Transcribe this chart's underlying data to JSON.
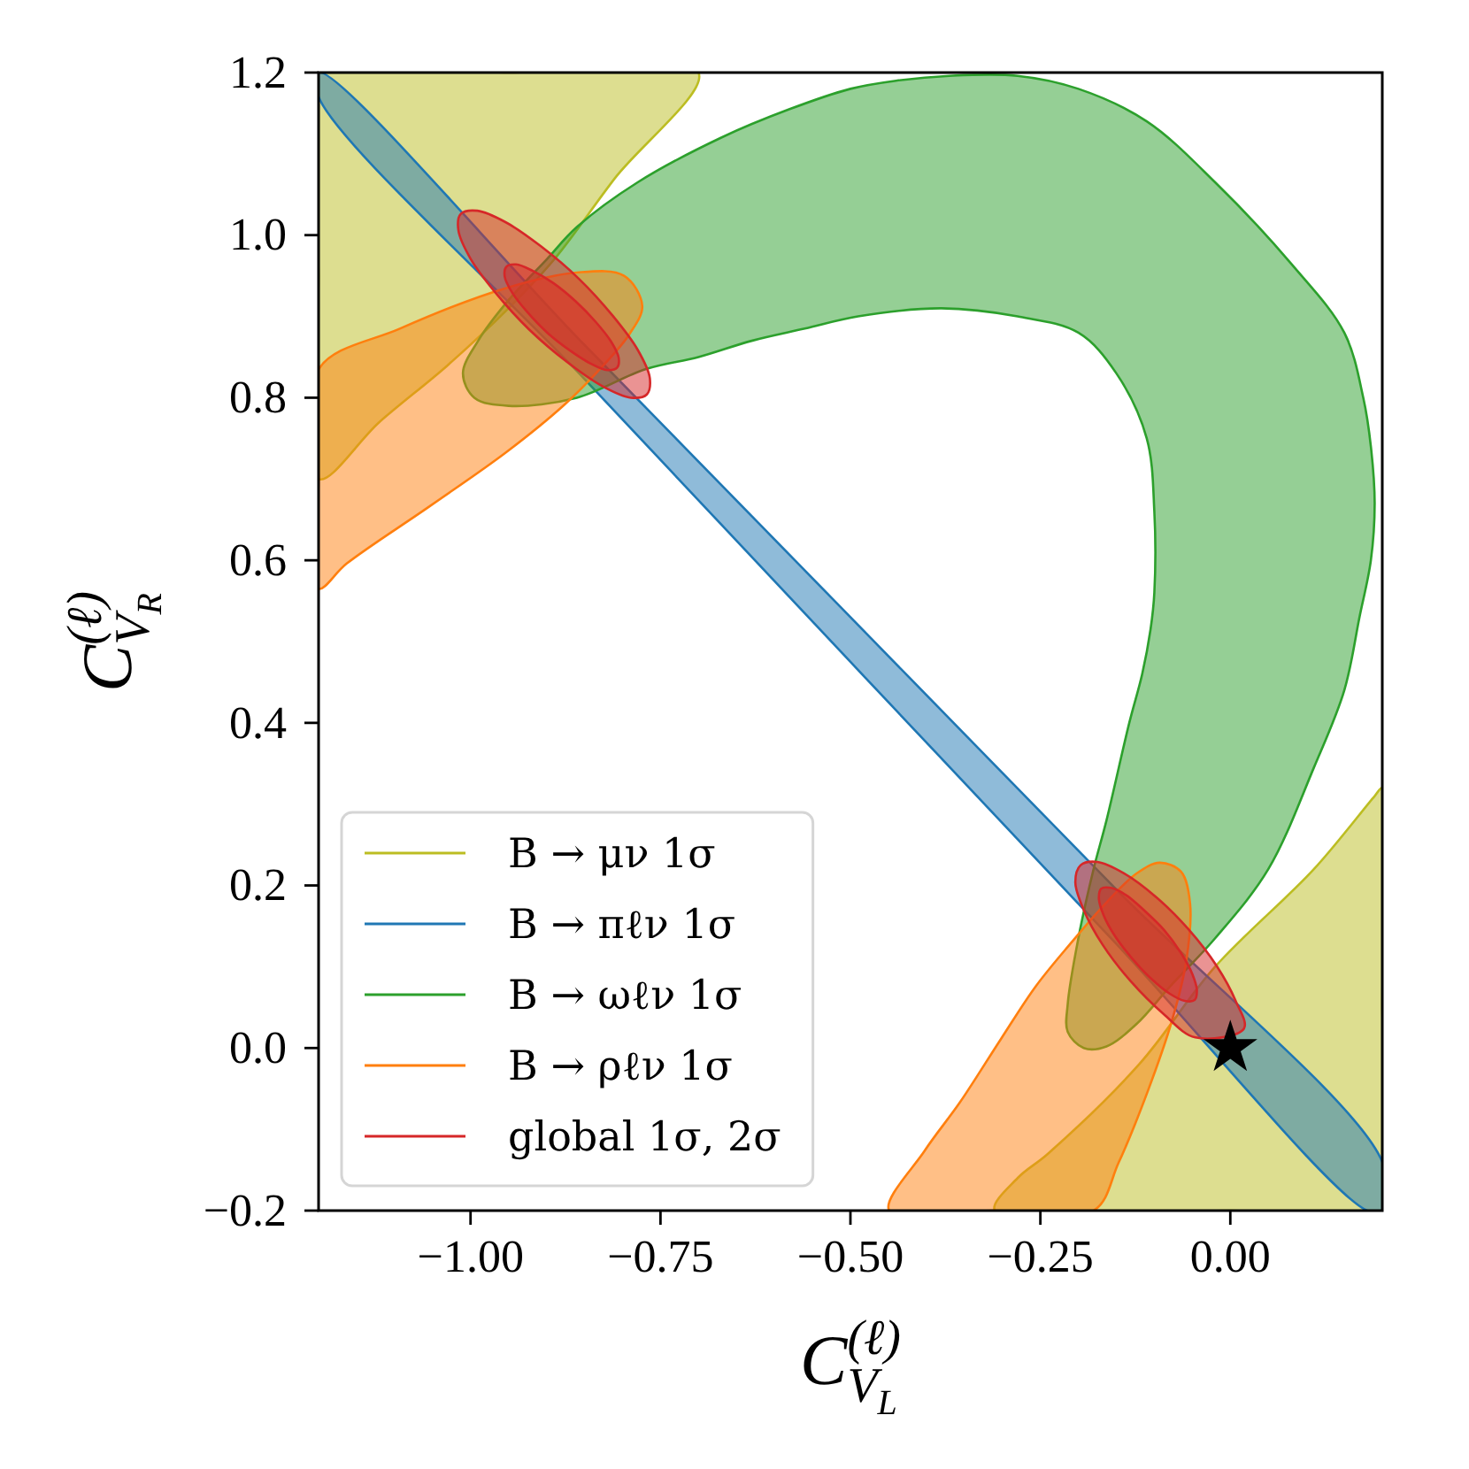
{
  "chart_data": {
    "type": "area",
    "xlabel": "C$^{(ℓ)}$$_{V}$$_{L}$",
    "ylabel": "C$^{(ℓ)}$$_{V}$$_{R}$",
    "xlim": [
      -1.2,
      0.2
    ],
    "ylim": [
      -0.2,
      1.2
    ],
    "xticks": [
      {
        "value": -1,
        "label": "−1.00"
      },
      {
        "value": -0.75,
        "label": "−0.75"
      },
      {
        "value": -0.5,
        "label": "−0.50"
      },
      {
        "value": -0.25,
        "label": "−0.25"
      },
      {
        "value": 0,
        "label": "0.00"
      }
    ],
    "yticks": [
      {
        "value": -0.2,
        "label": "−0.2"
      },
      {
        "value": 0,
        "label": "0.0"
      },
      0.2,
      0.4,
      0.6,
      0.8,
      {
        "value": 1,
        "label": "1.0"
      },
      1.2
    ],
    "legend": "bottom left",
    "series": [
      {
        "name": "B → μν 1σ",
        "color": "#bcbd22",
        "x": [
          -1.2,
          -0.95,
          -0.7,
          -0.81,
          -0.89,
          -0.95,
          -1.03,
          -1.12,
          -1.2,
          -1.2,
          null,
          -0.31,
          -0.28,
          -0.24,
          -0.12,
          -0.02,
          0.11,
          0.19,
          0.2,
          0.2,
          0.2,
          0.0
        ],
        "values": [
          1.2,
          1.2,
          1.2,
          1.07,
          0.97,
          0.91,
          0.84,
          0.77,
          0.7,
          0.95,
          null,
          -0.2,
          -0.16,
          -0.13,
          -0.02,
          0.1,
          0.22,
          0.31,
          0.32,
          0.05,
          -0.2,
          -0.2
        ]
      },
      {
        "name": "B → πℓν 1σ",
        "color": "#1f77b4",
        "x": [
          -1.2,
          -0.85,
          -0.5,
          -0.15,
          0.2,
          0.2,
          0.18,
          -0.15,
          -0.5,
          -0.85,
          -1.2
        ],
        "values": [
          1.2,
          0.865,
          0.53,
          0.195,
          -0.14,
          -0.2,
          -0.2,
          0.128,
          0.475,
          0.823,
          1.17
        ]
      },
      {
        "name": "B → ωℓν 1σ",
        "color": "#2ca02c",
        "x": [
          -1.01,
          -0.995,
          -0.95,
          -0.86,
          -0.77,
          -0.7,
          -0.63,
          -0.56,
          -0.49,
          -0.38,
          -0.28,
          -0.2,
          -0.15,
          -0.11,
          -0.1,
          -0.1,
          -0.105,
          -0.116,
          -0.133,
          -0.163,
          -0.18,
          -0.2,
          -0.214,
          -0.214,
          -0.193,
          -0.163,
          -0.123,
          -0.08,
          -0.02,
          0.05,
          0.11,
          0.15,
          0.17,
          0.185,
          0.19,
          0.185,
          0.175,
          0.15,
          0.08,
          -0.02,
          -0.11,
          -0.2,
          -0.28,
          -0.37,
          -0.44,
          -0.5,
          -0.58,
          -0.67,
          -0.78,
          -0.86,
          -0.9,
          -0.95,
          -0.99
        ],
        "values": [
          0.83,
          0.8,
          0.79,
          0.8,
          0.835,
          0.85,
          0.87,
          0.885,
          0.9,
          0.91,
          0.9,
          0.88,
          0.83,
          0.75,
          0.66,
          0.56,
          0.515,
          0.46,
          0.4,
          0.28,
          0.22,
          0.135,
          0.054,
          0.02,
          0.0,
          0.002,
          0.03,
          0.075,
          0.135,
          0.22,
          0.345,
          0.44,
          0.53,
          0.6,
          0.67,
          0.74,
          0.8,
          0.88,
          0.965,
          1.065,
          1.14,
          1.18,
          1.196,
          1.196,
          1.19,
          1.18,
          1.155,
          1.12,
          1.065,
          1.01,
          0.97,
          0.92,
          0.87
        ]
      },
      {
        "name": "B → ρℓν 1σ",
        "color": "#ff7f0e",
        "x": [
          -1.2,
          -1.093,
          -0.953,
          -0.86,
          -0.798,
          -0.774,
          -0.791,
          -0.83,
          -0.877,
          -0.953,
          -1.053,
          -1.163,
          -1.2,
          -1.2,
          null,
          -0.449,
          -0.402,
          -0.356,
          -0.302,
          -0.256,
          -0.209,
          -0.17,
          -0.123,
          -0.093,
          -0.065,
          -0.053,
          -0.058,
          -0.077,
          -0.109,
          -0.147,
          -0.18,
          -0.31
        ],
        "values": [
          0.835,
          0.885,
          0.935,
          0.954,
          0.95,
          0.913,
          0.878,
          0.835,
          0.791,
          0.733,
          0.667,
          0.596,
          0.565,
          0.7,
          null,
          -0.2,
          -0.126,
          -0.067,
          0.011,
          0.076,
          0.13,
          0.172,
          0.215,
          0.228,
          0.217,
          0.178,
          0.107,
          0.033,
          -0.054,
          -0.141,
          -0.2,
          -0.2
        ]
      },
      {
        "name": "global 1σ, 2σ",
        "color": "#d62728",
        "x": [
          -0.768,
          -0.764,
          -0.78,
          -0.813,
          -0.857,
          -0.907,
          -0.954,
          -0.991,
          -1.013,
          -1.016,
          -1.0,
          -0.967,
          -0.923,
          -0.873,
          -0.826,
          -0.789,
          null,
          0.018,
          0.007,
          -0.018,
          -0.055,
          -0.098,
          -0.14,
          -0.175,
          -0.197,
          -0.204,
          -0.193,
          -0.168,
          -0.131,
          -0.088,
          -0.046
        ],
        "values": [
          0.804,
          0.824,
          0.859,
          0.901,
          0.946,
          0.986,
          1.016,
          1.03,
          1.026,
          1.006,
          0.971,
          0.929,
          0.884,
          0.844,
          0.814,
          0.8,
          null,
          0.024,
          0.058,
          0.101,
          0.146,
          0.186,
          0.215,
          0.229,
          0.225,
          0.204,
          0.17,
          0.127,
          0.082,
          0.042,
          0.013
        ]
      },
      {
        "color": "#d62728",
        "x": [
          -0.807,
          -0.805,
          -0.815,
          -0.835,
          -0.861,
          -0.891,
          -0.918,
          -0.94,
          -0.953,
          -0.955,
          -0.945,
          -0.925,
          -0.899,
          -0.869,
          -0.842,
          -0.82,
          null,
          -0.047,
          -0.044,
          -0.05,
          -0.065,
          -0.087,
          -0.113,
          -0.137,
          -0.157,
          -0.17,
          -0.173,
          -0.167,
          -0.152,
          -0.13,
          -0.105,
          -0.08,
          -0.06
        ],
        "values": [
          0.837,
          0.849,
          0.869,
          0.893,
          0.918,
          0.941,
          0.956,
          0.964,
          0.961,
          0.949,
          0.929,
          0.905,
          0.88,
          0.858,
          0.842,
          0.834,
          null,
          0.059,
          0.071,
          0.091,
          0.117,
          0.145,
          0.169,
          0.188,
          0.197,
          0.196,
          0.184,
          0.164,
          0.138,
          0.111,
          0.086,
          0.067,
          0.058
        ]
      },
      {
        "type": "scatter",
        "marker": "star",
        "color": "#000000",
        "x": [
          0
        ],
        "values": [
          0
        ]
      }
    ]
  }
}
